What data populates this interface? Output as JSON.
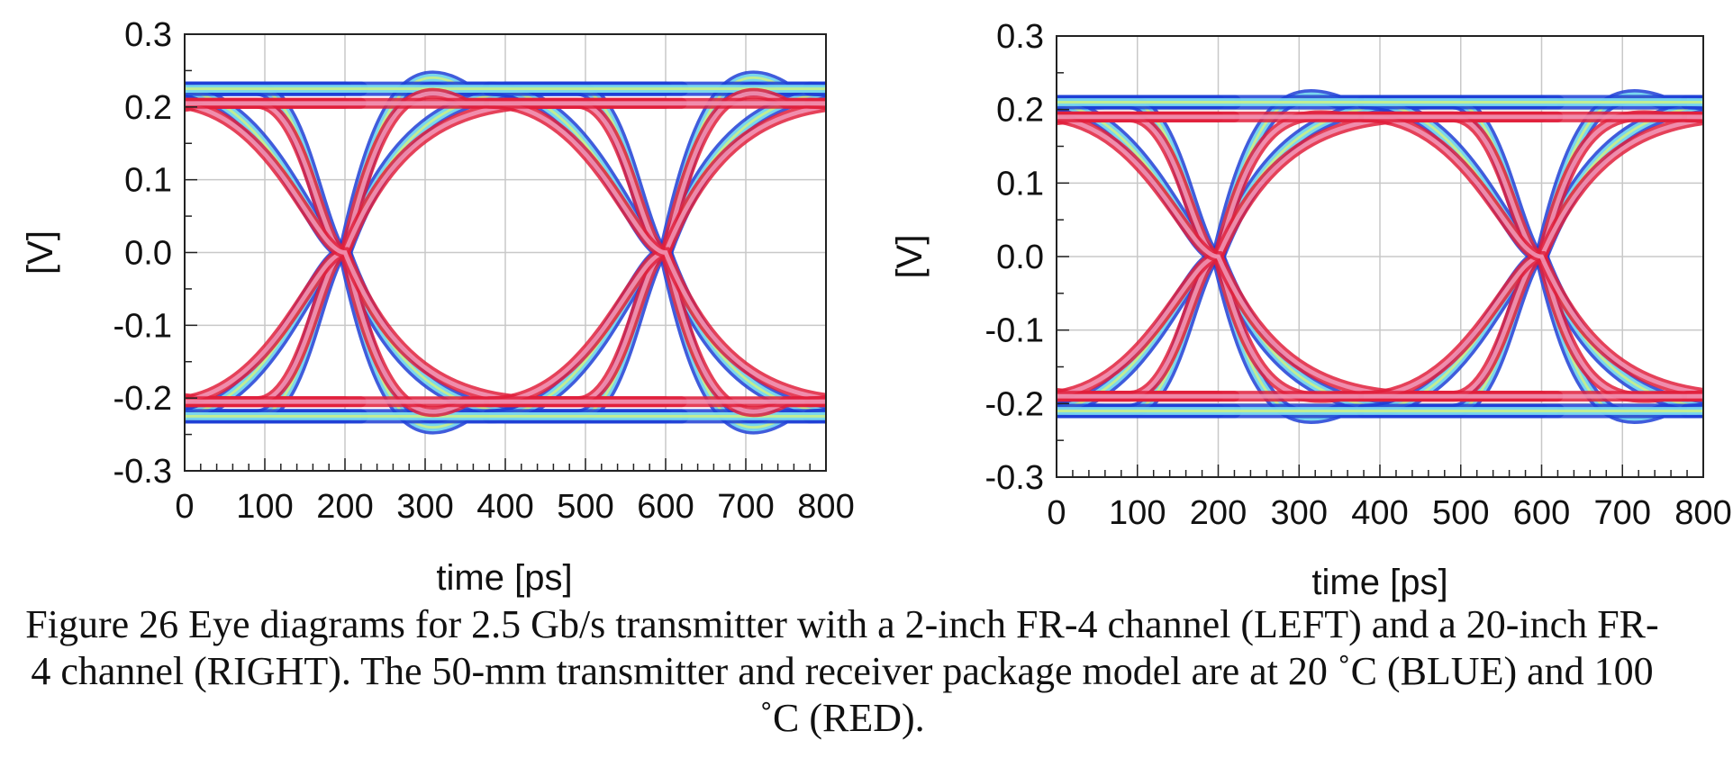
{
  "figure": {
    "caption": "Figure 26 Eye diagrams for 2.5 Gb/s transmitter with a 2-inch FR-4 channel (LEFT) and a 20-inch FR-4 channel (RIGHT). The 50-mm transmitter and receiver package model are at 20 ˚C (BLUE) and 100 ˚C (RED)."
  },
  "chart_data": [
    {
      "type": "line",
      "xlabel": "time [ps]",
      "ylabel": "[V]",
      "xlim": [
        0,
        800
      ],
      "ylim": [
        -0.3,
        0.3
      ],
      "xticks": [
        0,
        100,
        200,
        300,
        400,
        500,
        600,
        700,
        800
      ],
      "yticks": [
        0.3,
        0.2,
        0.1,
        0.0,
        -0.1,
        -0.2,
        -0.3
      ],
      "xtick_labels": [
        "0",
        "100",
        "200",
        "300",
        "400",
        "500",
        "600",
        "700",
        "800"
      ],
      "ytick_labels": [
        "0.3",
        "0.2",
        "0.1",
        "0.0",
        "-0.1",
        "-0.2",
        "-0.3"
      ],
      "grid": true,
      "crossings_ps": [
        200,
        600
      ],
      "series": [
        {
          "color": "#1f3fd6",
          "high_level": 0.225,
          "low_level": -0.225,
          "overshoot": 0.275
        },
        {
          "color": "#e0203c",
          "high_level": 0.205,
          "low_level": -0.205,
          "overshoot": 0.25
        }
      ]
    },
    {
      "type": "line",
      "xlabel": "time [ps]",
      "ylabel": "[V]",
      "xlim": [
        0,
        800
      ],
      "ylim": [
        -0.3,
        0.3
      ],
      "xticks": [
        0,
        100,
        200,
        300,
        400,
        500,
        600,
        700,
        800
      ],
      "yticks": [
        0.3,
        0.2,
        0.1,
        0.0,
        -0.1,
        -0.2,
        -0.3
      ],
      "xtick_labels": [
        "0",
        "100",
        "200",
        "300",
        "400",
        "500",
        "600",
        "700",
        "800"
      ],
      "ytick_labels": [
        "0.3",
        "0.2",
        "0.1",
        "0.0",
        "-0.1",
        "-0.2",
        "-0.3"
      ],
      "grid": true,
      "crossings_ps": [
        200,
        600
      ],
      "series": [
        {
          "color": "#1f3fd6",
          "high_level": 0.21,
          "low_level": -0.21,
          "overshoot": 0.24
        },
        {
          "color": "#e0203c",
          "high_level": 0.19,
          "low_level": -0.19,
          "overshoot": 0.2
        }
      ]
    }
  ]
}
